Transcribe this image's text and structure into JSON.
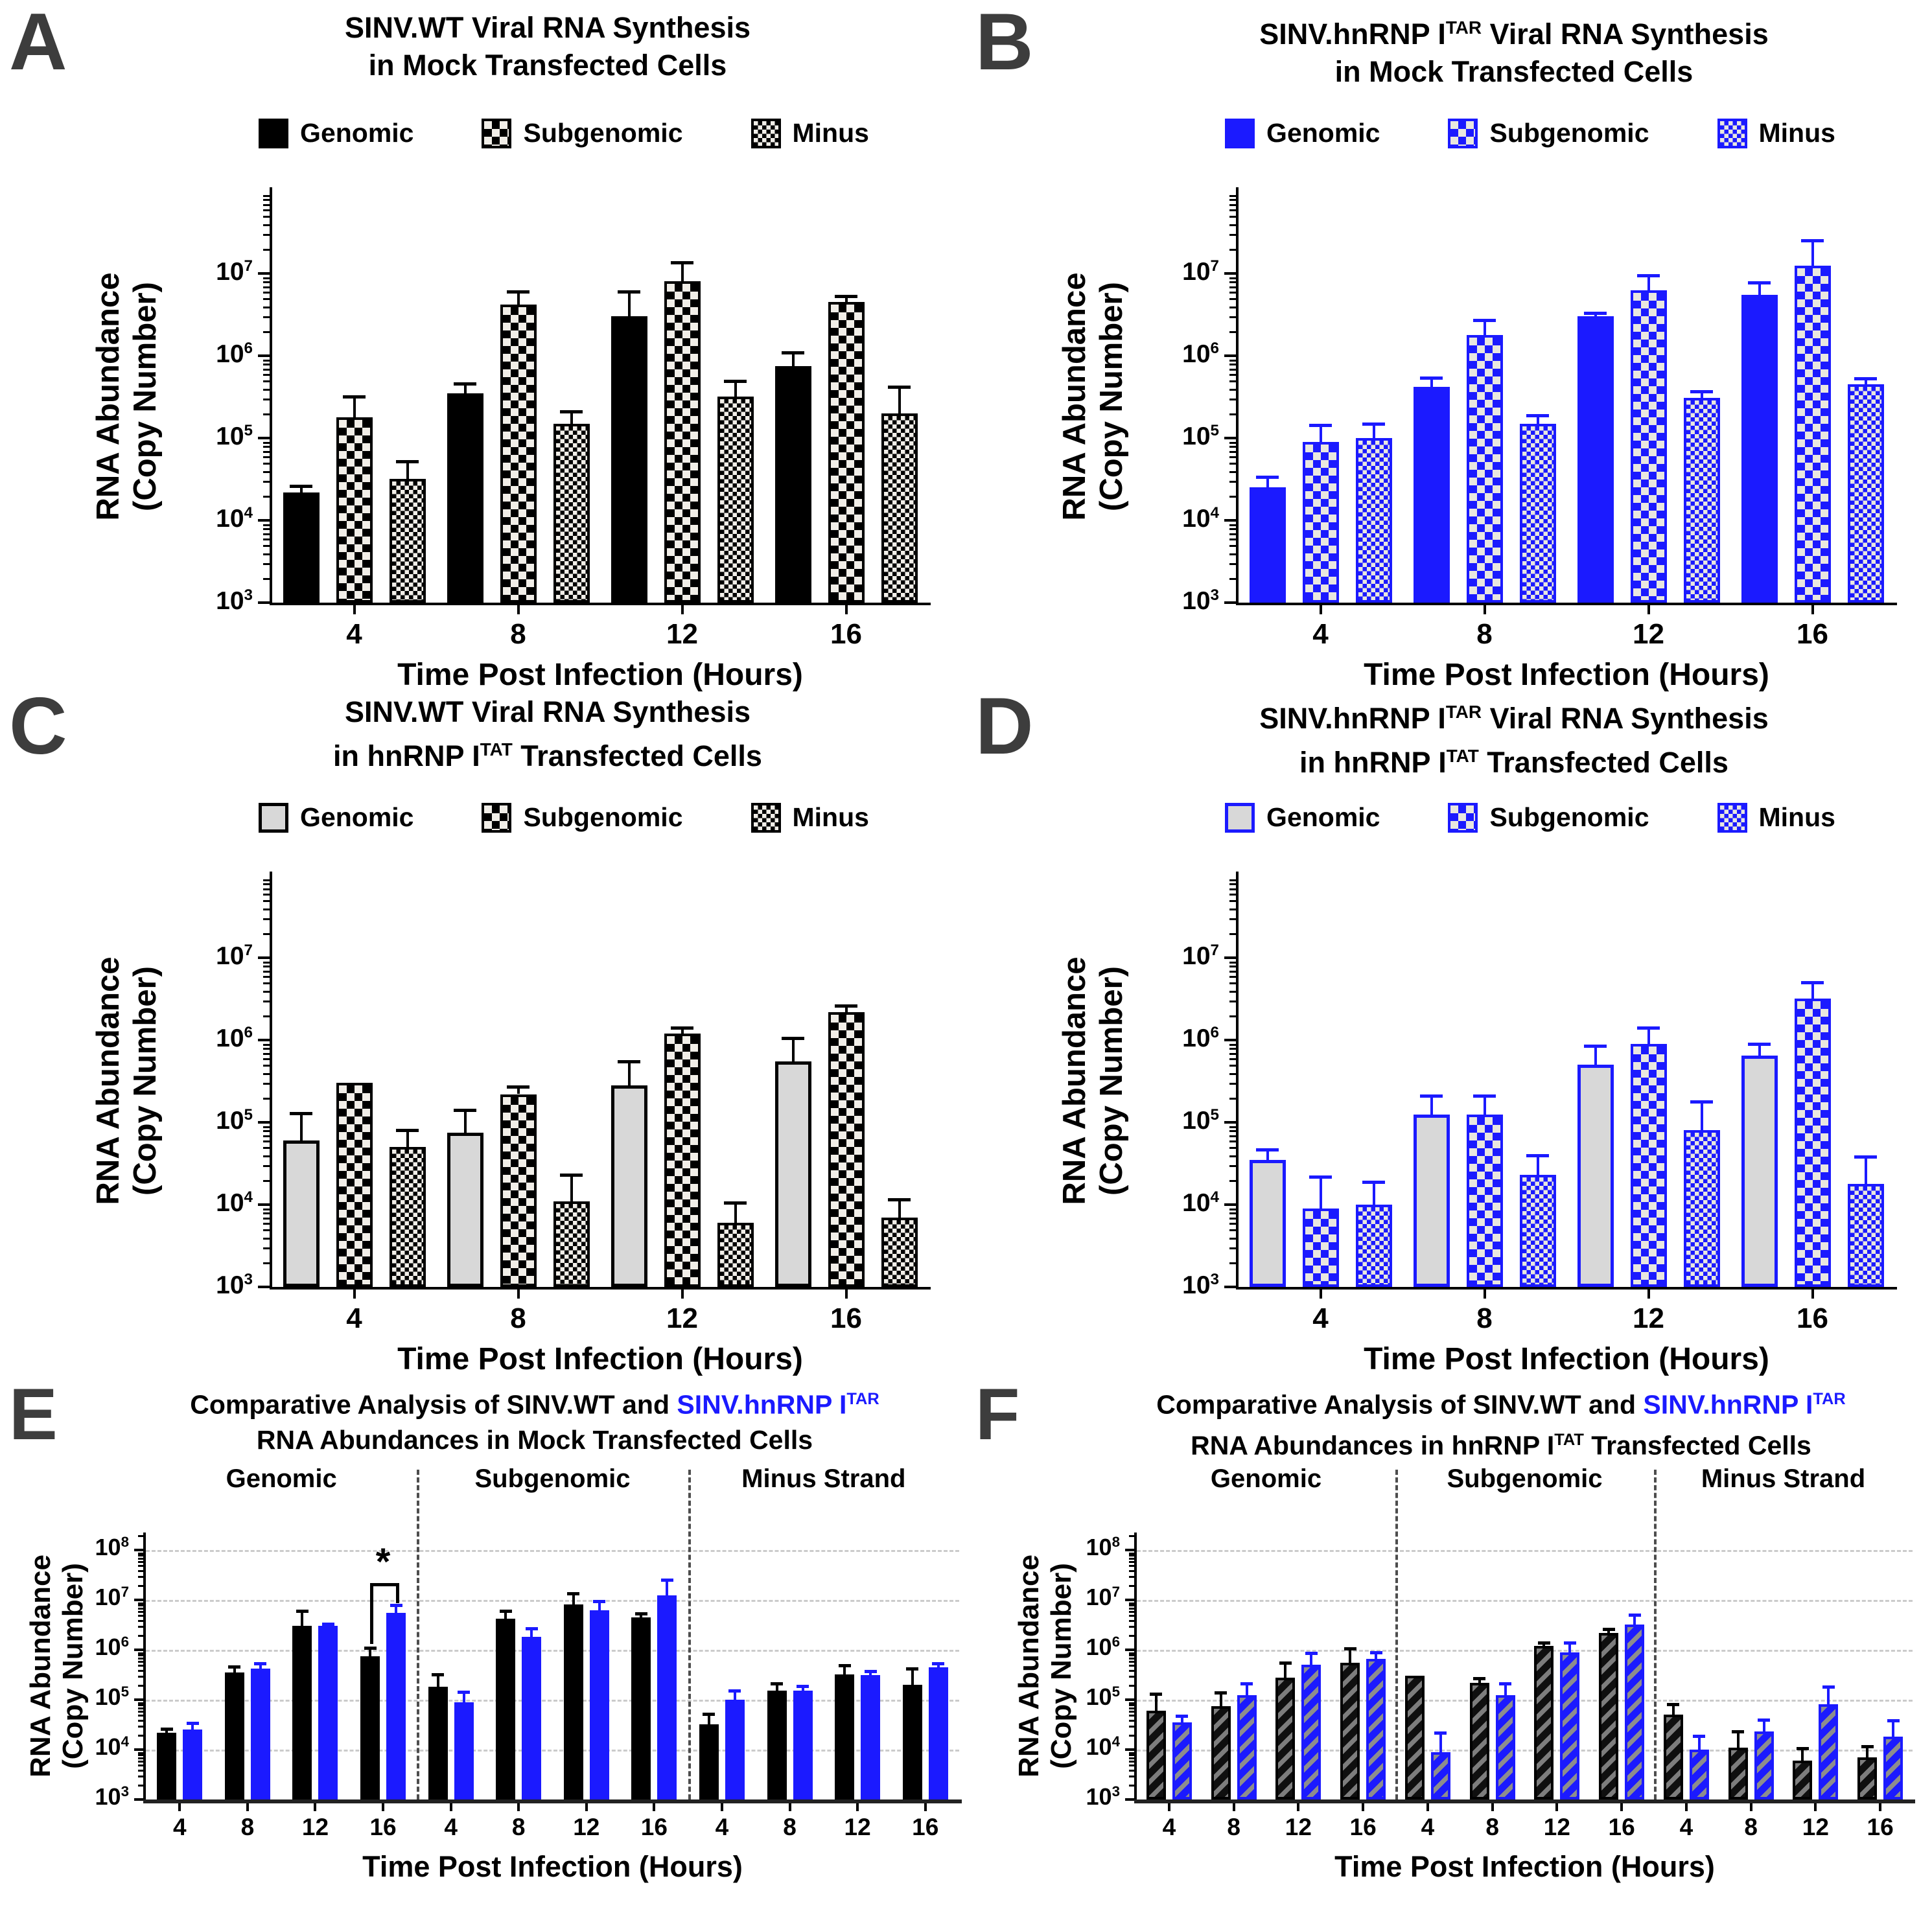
{
  "colors": {
    "blue": "#1b1aff",
    "black": "#000000",
    "genomic_gray_fill": "#d8d8d8",
    "panel_letter_gray": "#3d3d3d",
    "gridline_gray": "#cbcbcb"
  },
  "shared": {
    "xlabel": "Time Post Infection (Hours)",
    "ylabel": [
      "RNA Abundance",
      "(Copy Number)"
    ],
    "time_points": [
      "4",
      "8",
      "12",
      "16"
    ]
  },
  "chart_data": [
    {
      "panel": "A",
      "type": "bar",
      "y_scale": "log",
      "title_lines": [
        [
          {
            "text": "SINV.WT Viral RNA Synthesis"
          }
        ],
        [
          {
            "text": "in Mock Transfected Cells"
          }
        ]
      ],
      "legend": [
        {
          "label": "Genomic",
          "style": "solid-black"
        },
        {
          "label": "Subgenomic",
          "style": "checker-black"
        },
        {
          "label": "Minus",
          "style": "fine-checker-black"
        }
      ],
      "categories": [
        "4",
        "8",
        "12",
        "16"
      ],
      "xlabel": "Time Post Infection (Hours)",
      "ylabel": [
        "RNA Abundance",
        "(Copy Number)"
      ],
      "y_tick_exponents": [
        3,
        4,
        5,
        6,
        7
      ],
      "ylim": [
        1000,
        100000000
      ],
      "series": [
        {
          "name": "Genomic",
          "style": "solid-black",
          "values": [
            22000,
            350000,
            3000000,
            750000
          ],
          "err_top": [
            26000,
            460000,
            6000000,
            1100000
          ]
        },
        {
          "name": "Subgenomic",
          "style": "checker-black",
          "values": [
            180000,
            4200000,
            8000000,
            4500000
          ],
          "err_top": [
            320000,
            6000000,
            13500000,
            5300000
          ]
        },
        {
          "name": "Minus",
          "style": "fine-checker-black",
          "values": [
            32000,
            150000,
            320000,
            200000
          ],
          "err_top": [
            52000,
            210000,
            490000,
            420000
          ]
        }
      ]
    },
    {
      "panel": "B",
      "type": "bar",
      "y_scale": "log",
      "title_lines": [
        [
          {
            "text": "SINV.hnRNP I"
          },
          {
            "text": "TAR",
            "sup": true
          },
          {
            "text": " Viral RNA Synthesis"
          }
        ],
        [
          {
            "text": "in Mock Transfected Cells"
          }
        ]
      ],
      "legend": [
        {
          "label": "Genomic",
          "style": "solid-blue"
        },
        {
          "label": "Subgenomic",
          "style": "checker-blue"
        },
        {
          "label": "Minus",
          "style": "fine-checker-blue"
        }
      ],
      "categories": [
        "4",
        "8",
        "12",
        "16"
      ],
      "xlabel": "Time Post Infection (Hours)",
      "ylabel": [
        "RNA Abundance",
        "(Copy Number)"
      ],
      "y_tick_exponents": [
        3,
        4,
        5,
        6,
        7
      ],
      "ylim": [
        1000,
        100000000
      ],
      "series": [
        {
          "name": "Genomic",
          "style": "solid-blue",
          "values": [
            25000,
            420000,
            3000000,
            5500000
          ],
          "err_top": [
            34000,
            540000,
            3300000,
            7800000
          ]
        },
        {
          "name": "Subgenomic",
          "style": "checker-blue",
          "values": [
            90000,
            1800000,
            6200000,
            12500000
          ],
          "err_top": [
            145000,
            2700000,
            9500000,
            25000000
          ]
        },
        {
          "name": "Minus",
          "style": "fine-checker-blue",
          "values": [
            100000,
            150000,
            310000,
            450000
          ],
          "err_top": [
            150000,
            190000,
            370000,
            530000
          ]
        }
      ]
    },
    {
      "panel": "C",
      "type": "bar",
      "y_scale": "log",
      "title_lines": [
        [
          {
            "text": "SINV.WT Viral RNA Synthesis"
          }
        ],
        [
          {
            "text": "in hnRNP I"
          },
          {
            "text": "TAT",
            "sup": true
          },
          {
            "text": " Transfected Cells"
          }
        ]
      ],
      "legend": [
        {
          "label": "Genomic",
          "style": "gray-black"
        },
        {
          "label": "Subgenomic",
          "style": "checker-black"
        },
        {
          "label": "Minus",
          "style": "fine-checker-black"
        }
      ],
      "categories": [
        "4",
        "8",
        "12",
        "16"
      ],
      "xlabel": "Time Post Infection (Hours)",
      "ylabel": [
        "RNA Abundance",
        "(Copy Number)"
      ],
      "y_tick_exponents": [
        3,
        4,
        5,
        6,
        7
      ],
      "ylim": [
        1000,
        100000000
      ],
      "series": [
        {
          "name": "Genomic",
          "style": "gray-black",
          "values": [
            60000,
            75000,
            280000,
            550000
          ],
          "err_top": [
            130000,
            140000,
            550000,
            1050000
          ]
        },
        {
          "name": "Subgenomic",
          "style": "checker-black",
          "values": [
            300000,
            220000,
            1200000,
            2200000
          ],
          "err_top": [
            300000,
            270000,
            1400000,
            2600000
          ]
        },
        {
          "name": "Minus",
          "style": "fine-checker-black",
          "values": [
            50000,
            11000,
            6000,
            7000
          ],
          "err_top": [
            80000,
            23000,
            10500,
            11500
          ]
        }
      ]
    },
    {
      "panel": "D",
      "type": "bar",
      "y_scale": "log",
      "title_lines": [
        [
          {
            "text": "SINV.hnRNP I"
          },
          {
            "text": "TAR",
            "sup": true
          },
          {
            "text": " Viral RNA Synthesis"
          }
        ],
        [
          {
            "text": "in hnRNP I"
          },
          {
            "text": "TAT",
            "sup": true
          },
          {
            "text": " Transfected Cells"
          }
        ]
      ],
      "legend": [
        {
          "label": "Genomic",
          "style": "gray-blue"
        },
        {
          "label": "Subgenomic",
          "style": "checker-blue"
        },
        {
          "label": "Minus",
          "style": "fine-checker-blue"
        }
      ],
      "categories": [
        "4",
        "8",
        "12",
        "16"
      ],
      "xlabel": "Time Post Infection (Hours)",
      "ylabel": [
        "RNA Abundance",
        "(Copy Number)"
      ],
      "y_tick_exponents": [
        3,
        4,
        5,
        6,
        7
      ],
      "ylim": [
        1000,
        100000000
      ],
      "series": [
        {
          "name": "Genomic",
          "style": "gray-blue",
          "values": [
            35000,
            125000,
            500000,
            650000
          ],
          "err_top": [
            47000,
            210000,
            850000,
            900000
          ]
        },
        {
          "name": "Subgenomic",
          "style": "checker-blue",
          "values": [
            9000,
            125000,
            900000,
            3200000
          ],
          "err_top": [
            22000,
            210000,
            1400000,
            5000000
          ]
        },
        {
          "name": "Minus",
          "style": "fine-checker-blue",
          "values": [
            10000,
            23000,
            80000,
            18000
          ],
          "err_top": [
            19000,
            40000,
            180000,
            38000
          ]
        }
      ]
    },
    {
      "panel": "E",
      "type": "grouped-bar-sections",
      "y_scale": "log",
      "title_lines": [
        [
          {
            "text": "Comparative Analysis of SINV.WT and "
          },
          {
            "text": "SINV.hnRNP I",
            "color": "blue"
          },
          {
            "text": "TAR",
            "sup": true,
            "color": "blue"
          }
        ],
        [
          {
            "text": "RNA Abundances in Mock Transfected Cells"
          }
        ]
      ],
      "categories": [
        "4",
        "8",
        "12",
        "16"
      ],
      "xlabel": "Time Post Infection (Hours)",
      "ylabel": [
        "RNA Abundance",
        "(Copy Number)"
      ],
      "y_tick_exponents": [
        3,
        4,
        5,
        6,
        7,
        8
      ],
      "gridline_exponents": [
        4,
        5,
        6,
        7,
        8
      ],
      "ylim": [
        1000,
        200000000
      ],
      "sections": [
        {
          "label": "Genomic",
          "series": [
            {
              "name": "SINV.WT",
              "style": "solid-black",
              "values": [
                22000,
                350000,
                3000000,
                750000
              ],
              "err_top": [
                26000,
                460000,
                6000000,
                1100000
              ]
            },
            {
              "name": "SINV.hnRNP I TAR",
              "style": "solid-blue",
              "values": [
                25000,
                420000,
                3000000,
                5500000
              ],
              "err_top": [
                34000,
                540000,
                3300000,
                7800000
              ]
            }
          ]
        },
        {
          "label": "Subgenomic",
          "series": [
            {
              "name": "SINV.WT",
              "style": "solid-black",
              "values": [
                180000,
                4200000,
                8000000,
                4500000
              ],
              "err_top": [
                320000,
                6000000,
                13500000,
                5300000
              ]
            },
            {
              "name": "SINV.hnRNP I TAR",
              "style": "solid-blue",
              "values": [
                90000,
                1800000,
                6200000,
                12500000
              ],
              "err_top": [
                145000,
                2700000,
                9500000,
                25000000
              ]
            }
          ]
        },
        {
          "label": "Minus Strand",
          "series": [
            {
              "name": "SINV.WT",
              "style": "solid-black",
              "values": [
                32000,
                150000,
                320000,
                200000
              ],
              "err_top": [
                52000,
                210000,
                490000,
                420000
              ]
            },
            {
              "name": "SINV.hnRNP I TAR",
              "style": "solid-blue",
              "values": [
                100000,
                150000,
                310000,
                450000
              ],
              "err_top": [
                150000,
                190000,
                370000,
                530000
              ]
            }
          ]
        }
      ],
      "annotation": {
        "label": "*",
        "section": 0,
        "group": 3,
        "bracket_top": 22000000,
        "left_drop": 1300000,
        "right_drop": 8500000
      }
    },
    {
      "panel": "F",
      "type": "grouped-bar-sections",
      "y_scale": "log",
      "title_lines": [
        [
          {
            "text": "Comparative Analysis of SINV.WT and "
          },
          {
            "text": "SINV.hnRNP I",
            "color": "blue"
          },
          {
            "text": "TAR",
            "sup": true,
            "color": "blue"
          }
        ],
        [
          {
            "text": "RNA Abundances in hnRNP I"
          },
          {
            "text": "TAT",
            "sup": true
          },
          {
            "text": " Transfected Cells"
          }
        ]
      ],
      "categories": [
        "4",
        "8",
        "12",
        "16"
      ],
      "xlabel": "Time Post Infection (Hours)",
      "ylabel": [
        "RNA Abundance",
        "(Copy Number)"
      ],
      "y_tick_exponents": [
        3,
        4,
        5,
        6,
        7,
        8
      ],
      "gridline_exponents": [
        4,
        5,
        6,
        7,
        8
      ],
      "ylim": [
        1000,
        200000000
      ],
      "sections": [
        {
          "label": "Genomic",
          "series": [
            {
              "name": "SINV.WT",
              "style": "hatch-black",
              "values": [
                60000,
                75000,
                280000,
                550000
              ],
              "err_top": [
                130000,
                140000,
                550000,
                1050000
              ]
            },
            {
              "name": "SINV.hnRNP I TAR",
              "style": "hatch-blue",
              "values": [
                35000,
                125000,
                500000,
                650000
              ],
              "err_top": [
                47000,
                210000,
                850000,
                900000
              ]
            }
          ]
        },
        {
          "label": "Subgenomic",
          "series": [
            {
              "name": "SINV.WT",
              "style": "hatch-black",
              "values": [
                300000,
                220000,
                1200000,
                2200000
              ],
              "err_top": [
                300000,
                270000,
                1400000,
                2600000
              ]
            },
            {
              "name": "SINV.hnRNP I TAR",
              "style": "hatch-blue",
              "values": [
                9000,
                125000,
                900000,
                3200000
              ],
              "err_top": [
                22000,
                210000,
                1400000,
                5000000
              ]
            }
          ]
        },
        {
          "label": "Minus Strand",
          "series": [
            {
              "name": "SINV.WT",
              "style": "hatch-black",
              "values": [
                50000,
                11000,
                6000,
                7000
              ],
              "err_top": [
                80000,
                23000,
                10500,
                11500
              ]
            },
            {
              "name": "SINV.hnRNP I TAR",
              "style": "hatch-blue",
              "values": [
                10000,
                23000,
                80000,
                18000
              ],
              "err_top": [
                19000,
                40000,
                180000,
                38000
              ]
            }
          ]
        }
      ]
    }
  ]
}
